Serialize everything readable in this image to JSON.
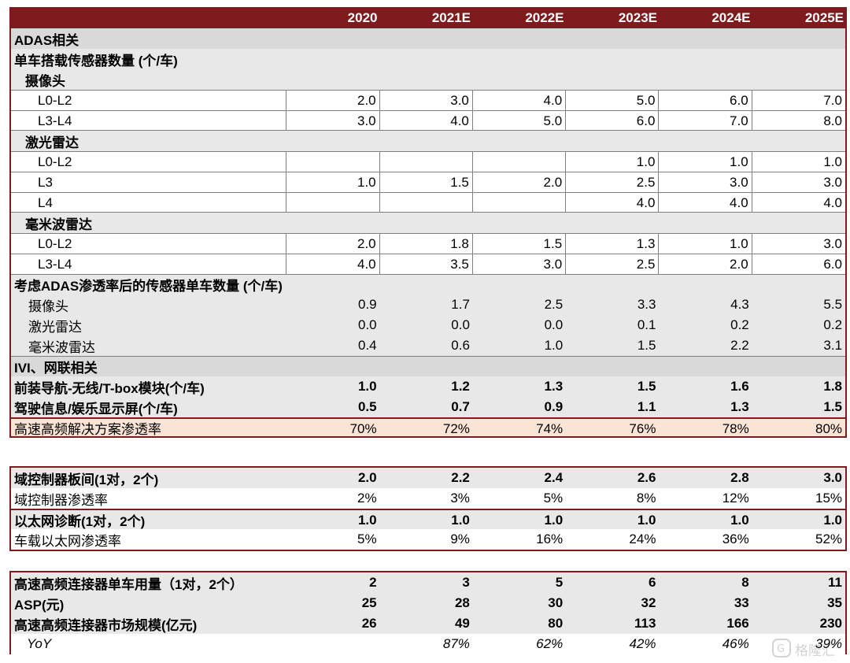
{
  "years": [
    "2020",
    "2021E",
    "2022E",
    "2023E",
    "2024E",
    "2025E"
  ],
  "block1": {
    "adas_title": "ADAS相关",
    "sensor_count_title": "单车搭载传感器数量 (个/车)",
    "camera": {
      "label": "摄像头",
      "rows": [
        {
          "label": "L0-L2",
          "values": [
            "2.0",
            "3.0",
            "4.0",
            "5.0",
            "6.0",
            "7.0"
          ]
        },
        {
          "label": "L3-L4",
          "values": [
            "3.0",
            "4.0",
            "5.0",
            "6.0",
            "7.0",
            "8.0"
          ]
        }
      ]
    },
    "lidar": {
      "label": "激光雷达",
      "rows": [
        {
          "label": "L0-L2",
          "values": [
            "",
            "",
            "",
            "1.0",
            "1.0",
            "1.0"
          ]
        },
        {
          "label": "L3",
          "values": [
            "1.0",
            "1.5",
            "2.0",
            "2.5",
            "3.0",
            "3.0"
          ]
        },
        {
          "label": "L4",
          "values": [
            "",
            "",
            "",
            "4.0",
            "4.0",
            "4.0"
          ]
        }
      ]
    },
    "mmwave": {
      "label": "毫米波雷达",
      "rows": [
        {
          "label": "L0-L2",
          "values": [
            "2.0",
            "1.8",
            "1.5",
            "1.3",
            "1.0",
            "3.0"
          ]
        },
        {
          "label": "L3-L4",
          "values": [
            "4.0",
            "3.5",
            "3.0",
            "2.5",
            "2.0",
            "6.0"
          ]
        }
      ]
    },
    "adj_title": "考虑ADAS渗透率后的传感器单车数量 (个/车)",
    "adj_rows": [
      {
        "label": "摄像头",
        "values": [
          "0.9",
          "1.7",
          "2.5",
          "3.3",
          "4.3",
          "5.5"
        ]
      },
      {
        "label": "激光雷达",
        "values": [
          "0.0",
          "0.0",
          "0.0",
          "0.1",
          "0.2",
          "0.2"
        ]
      },
      {
        "label": "毫米波雷达",
        "values": [
          "0.4",
          "0.6",
          "1.0",
          "1.5",
          "2.2",
          "3.1"
        ]
      }
    ],
    "ivi_title": "IVI、网联相关",
    "ivi_rows": [
      {
        "label": "前装导航-无线/T-box模块(个/车)",
        "values": [
          "1.0",
          "1.2",
          "1.3",
          "1.5",
          "1.6",
          "1.8"
        ]
      },
      {
        "label": "驾驶信息/娱乐显示屏(个/车)",
        "values": [
          "0.5",
          "0.7",
          "0.9",
          "1.1",
          "1.3",
          "1.5"
        ]
      }
    ],
    "penetration": {
      "label": "高速高频解决方案渗透率",
      "values": [
        "70%",
        "72%",
        "74%",
        "76%",
        "78%",
        "80%"
      ]
    }
  },
  "block2": {
    "rows": [
      {
        "label": "域控制器板间(1对，2个)",
        "values": [
          "2.0",
          "2.2",
          "2.4",
          "2.6",
          "2.8",
          "3.0"
        ]
      },
      {
        "label": "域控制器渗透率",
        "values": [
          "2%",
          "3%",
          "5%",
          "8%",
          "12%",
          "15%"
        ]
      },
      {
        "label": "以太网诊断(1对，2个)",
        "values": [
          "1.0",
          "1.0",
          "1.0",
          "1.0",
          "1.0",
          "1.0"
        ]
      },
      {
        "label": "车载以太网渗透率",
        "values": [
          "5%",
          "9%",
          "16%",
          "24%",
          "36%",
          "52%"
        ]
      }
    ]
  },
  "block3": {
    "rows": [
      {
        "label": "高速高频连接器单车用量（1对，2个）",
        "values": [
          "2",
          "3",
          "5",
          "6",
          "8",
          "11"
        ]
      },
      {
        "label": "ASP(元)",
        "values": [
          "25",
          "28",
          "30",
          "32",
          "33",
          "35"
        ]
      },
      {
        "label": "高速高频连接器市场规模(亿元)",
        "values": [
          "26",
          "49",
          "80",
          "113",
          "166",
          "230"
        ]
      },
      {
        "label": "YoY",
        "values": [
          "",
          "87%",
          "62%",
          "42%",
          "46%",
          "39%"
        ]
      }
    ]
  },
  "watermark": "格隆汇"
}
